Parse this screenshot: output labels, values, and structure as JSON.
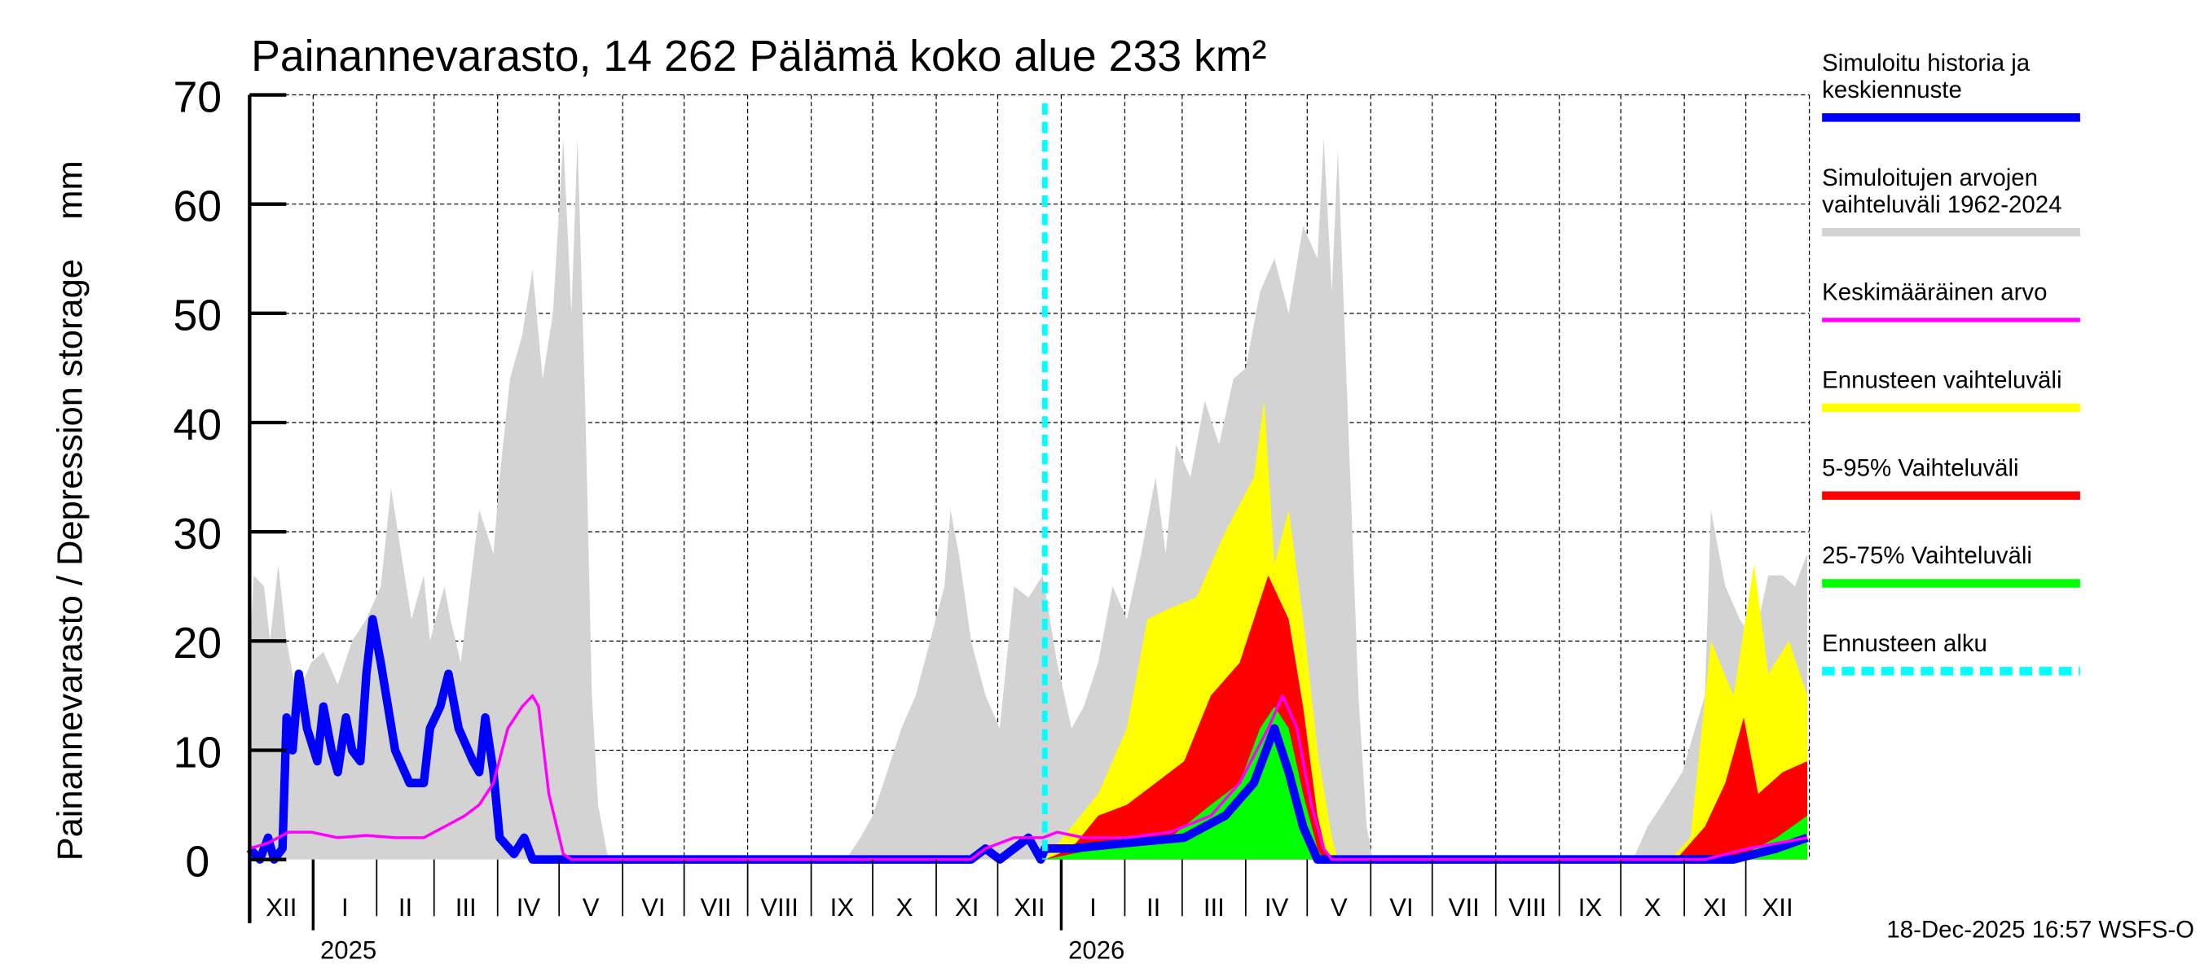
{
  "chart_data": {
    "type": "area",
    "title": "Painannevarasto, 14 262 Pälämä koko alue 233 km²",
    "ylabel": "Painannevarasto / Depression storage    mm",
    "xlabel": "",
    "x_unit": "days since 2024-12-01",
    "xlim": [
      0,
      761
    ],
    "ylim": [
      0,
      70
    ],
    "yticks": [
      0,
      10,
      20,
      30,
      40,
      50,
      60,
      70
    ],
    "grid": true,
    "legend_placement": "right",
    "months": [
      {
        "label": "XII",
        "start": 0
      },
      {
        "label": "I",
        "start": 31
      },
      {
        "label": "II",
        "start": 62
      },
      {
        "label": "III",
        "start": 90
      },
      {
        "label": "IV",
        "start": 121
      },
      {
        "label": "V",
        "start": 151
      },
      {
        "label": "VI",
        "start": 182
      },
      {
        "label": "VII",
        "start": 212
      },
      {
        "label": "VIII",
        "start": 243
      },
      {
        "label": "IX",
        "start": 274
      },
      {
        "label": "X",
        "start": 304
      },
      {
        "label": "XI",
        "start": 335
      },
      {
        "label": "XII",
        "start": 365
      },
      {
        "label": "I",
        "start": 396
      },
      {
        "label": "II",
        "start": 427
      },
      {
        "label": "III",
        "start": 455
      },
      {
        "label": "IV",
        "start": 486
      },
      {
        "label": "V",
        "start": 516
      },
      {
        "label": "VI",
        "start": 547
      },
      {
        "label": "VII",
        "start": 577
      },
      {
        "label": "VIII",
        "start": 608
      },
      {
        "label": "IX",
        "start": 639
      },
      {
        "label": "X",
        "start": 669
      },
      {
        "label": "XI",
        "start": 700
      },
      {
        "label": "XII",
        "start": 730
      }
    ],
    "month_end": 761,
    "years": [
      {
        "label": "2025",
        "start": 31
      },
      {
        "label": "2026",
        "start": 396
      }
    ],
    "forecast_start": 388,
    "footer": "18-Dec-2025 16:57 WSFS-O",
    "series": [
      {
        "name": "Simuloitujen arvojen vaihteluväli 1962-2024",
        "kind": "band",
        "color": "#d3d3d3",
        "points": [
          [
            0,
            19
          ],
          [
            2,
            26
          ],
          [
            7,
            25
          ],
          [
            10,
            20
          ],
          [
            14,
            27
          ],
          [
            18,
            20
          ],
          [
            23,
            15
          ],
          [
            30,
            18
          ],
          [
            36,
            19
          ],
          [
            43,
            16
          ],
          [
            50,
            20
          ],
          [
            57,
            22
          ],
          [
            64,
            25
          ],
          [
            69,
            34
          ],
          [
            74,
            28
          ],
          [
            79,
            22
          ],
          [
            85,
            26
          ],
          [
            88,
            20
          ],
          [
            95,
            25
          ],
          [
            98,
            22
          ],
          [
            103,
            18
          ],
          [
            112,
            32
          ],
          [
            119,
            28
          ],
          [
            122,
            35
          ],
          [
            127,
            44
          ],
          [
            133,
            48
          ],
          [
            138,
            54
          ],
          [
            143,
            44
          ],
          [
            148,
            50
          ],
          [
            153,
            66
          ],
          [
            157,
            50
          ],
          [
            160,
            66
          ],
          [
            164,
            40
          ],
          [
            167,
            15
          ],
          [
            170,
            5
          ],
          [
            175,
            0
          ],
          [
            291,
            0
          ],
          [
            298,
            2
          ],
          [
            304,
            4
          ],
          [
            311,
            8
          ],
          [
            318,
            12
          ],
          [
            325,
            15
          ],
          [
            332,
            20
          ],
          [
            339,
            25
          ],
          [
            342,
            32
          ],
          [
            346,
            28
          ],
          [
            352,
            20
          ],
          [
            359,
            15
          ],
          [
            366,
            12
          ],
          [
            373,
            25
          ],
          [
            380,
            24
          ],
          [
            387,
            26
          ],
          [
            394,
            18
          ],
          [
            401,
            12
          ],
          [
            407,
            14
          ],
          [
            414,
            18
          ],
          [
            421,
            25
          ],
          [
            428,
            22
          ],
          [
            435,
            28
          ],
          [
            442,
            35
          ],
          [
            447,
            28
          ],
          [
            452,
            38
          ],
          [
            459,
            35
          ],
          [
            466,
            42
          ],
          [
            473,
            38
          ],
          [
            480,
            44
          ],
          [
            486,
            45
          ],
          [
            493,
            52
          ],
          [
            500,
            55
          ],
          [
            507,
            50
          ],
          [
            514,
            58
          ],
          [
            521,
            55
          ],
          [
            524,
            66
          ],
          [
            528,
            52
          ],
          [
            531,
            65
          ],
          [
            535,
            45
          ],
          [
            538,
            30
          ],
          [
            541,
            15
          ],
          [
            545,
            3
          ],
          [
            548,
            0
          ],
          [
            675,
            0
          ],
          [
            682,
            3
          ],
          [
            689,
            5
          ],
          [
            699,
            8
          ],
          [
            710,
            15
          ],
          [
            713,
            32
          ],
          [
            720,
            25
          ],
          [
            727,
            22
          ],
          [
            734,
            20
          ],
          [
            741,
            26
          ],
          [
            748,
            26
          ],
          [
            754,
            25
          ],
          [
            760,
            28
          ]
        ]
      },
      {
        "name": "Ennusteen vaihteluväli",
        "kind": "band",
        "color": "#ffff00",
        "points": [
          [
            388,
            0
          ],
          [
            401,
            3
          ],
          [
            414,
            6
          ],
          [
            428,
            12
          ],
          [
            438,
            22
          ],
          [
            449,
            23
          ],
          [
            462,
            24
          ],
          [
            476,
            30
          ],
          [
            490,
            35
          ],
          [
            495,
            42
          ],
          [
            500,
            27
          ],
          [
            507,
            32
          ],
          [
            514,
            22
          ],
          [
            521,
            10
          ],
          [
            528,
            2
          ],
          [
            531,
            0
          ],
          [
            693,
            0
          ],
          [
            703,
            2
          ],
          [
            713,
            20
          ],
          [
            724,
            15
          ],
          [
            734,
            27
          ],
          [
            741,
            17
          ],
          [
            751,
            20
          ],
          [
            760,
            15
          ]
        ]
      },
      {
        "name": "5-95% Vaihteluväli",
        "kind": "band",
        "color": "#ff0000",
        "points": [
          [
            388,
            0
          ],
          [
            401,
            1
          ],
          [
            414,
            4
          ],
          [
            428,
            5
          ],
          [
            442,
            7
          ],
          [
            456,
            9
          ],
          [
            469,
            15
          ],
          [
            483,
            18
          ],
          [
            497,
            26
          ],
          [
            507,
            22
          ],
          [
            514,
            14
          ],
          [
            521,
            4
          ],
          [
            526,
            0
          ],
          [
            696,
            0
          ],
          [
            710,
            3
          ],
          [
            720,
            7
          ],
          [
            729,
            13
          ],
          [
            736,
            6
          ],
          [
            748,
            8
          ],
          [
            760,
            9
          ]
        ]
      },
      {
        "name": "25-75% Vaihteluväli",
        "kind": "band",
        "color": "#00ff00",
        "points": [
          [
            388,
            0
          ],
          [
            401,
            0.5
          ],
          [
            428,
            1.5
          ],
          [
            449,
            2
          ],
          [
            469,
            5
          ],
          [
            483,
            7
          ],
          [
            493,
            12
          ],
          [
            500,
            14
          ],
          [
            507,
            12
          ],
          [
            514,
            6
          ],
          [
            521,
            1
          ],
          [
            524,
            0
          ],
          [
            724,
            0
          ],
          [
            745,
            2
          ],
          [
            760,
            4
          ]
        ]
      },
      {
        "name": "Simuloitu historia ja keskiennuste",
        "kind": "line",
        "color": "#0000ff",
        "width": 6,
        "points": [
          [
            0,
            1
          ],
          [
            5,
            0
          ],
          [
            9,
            2
          ],
          [
            12,
            0
          ],
          [
            16,
            1
          ],
          [
            18,
            13
          ],
          [
            21,
            10
          ],
          [
            24,
            17
          ],
          [
            28,
            12
          ],
          [
            33,
            9
          ],
          [
            36,
            14
          ],
          [
            40,
            10
          ],
          [
            43,
            8
          ],
          [
            47,
            13
          ],
          [
            50,
            10
          ],
          [
            54,
            9
          ],
          [
            57,
            17
          ],
          [
            60,
            22
          ],
          [
            64,
            18
          ],
          [
            71,
            10
          ],
          [
            78,
            7
          ],
          [
            85,
            7
          ],
          [
            88,
            12
          ],
          [
            93,
            14
          ],
          [
            97,
            17
          ],
          [
            102,
            12
          ],
          [
            109,
            9
          ],
          [
            112,
            8
          ],
          [
            115,
            13
          ],
          [
            119,
            8
          ],
          [
            122,
            2
          ],
          [
            129,
            0.5
          ],
          [
            134,
            2
          ],
          [
            138,
            0
          ],
          [
            352,
            0
          ],
          [
            359,
            1
          ],
          [
            366,
            0
          ],
          [
            373,
            1
          ],
          [
            380,
            2
          ],
          [
            386,
            0
          ],
          [
            388,
            1
          ],
          [
            401,
            1
          ],
          [
            428,
            1.5
          ],
          [
            456,
            2
          ],
          [
            476,
            4
          ],
          [
            490,
            7
          ],
          [
            500,
            12
          ],
          [
            507,
            8
          ],
          [
            514,
            3
          ],
          [
            521,
            0
          ],
          [
            724,
            0
          ],
          [
            745,
            1
          ],
          [
            760,
            2
          ]
        ]
      },
      {
        "name": "Keskimääräinen arvo",
        "kind": "line",
        "color": "#ff00ff",
        "width": 2,
        "points": [
          [
            0,
            1
          ],
          [
            9,
            1.5
          ],
          [
            19,
            2.5
          ],
          [
            30,
            2.5
          ],
          [
            43,
            2
          ],
          [
            57,
            2.2
          ],
          [
            71,
            2
          ],
          [
            85,
            2
          ],
          [
            95,
            3
          ],
          [
            105,
            4
          ],
          [
            112,
            5
          ],
          [
            119,
            7
          ],
          [
            126,
            12
          ],
          [
            133,
            14
          ],
          [
            138,
            15
          ],
          [
            141,
            14
          ],
          [
            146,
            6
          ],
          [
            153,
            0.5
          ],
          [
            157,
            0
          ],
          [
            352,
            0
          ],
          [
            359,
            1
          ],
          [
            373,
            2
          ],
          [
            387,
            2
          ],
          [
            394,
            2.5
          ],
          [
            407,
            2
          ],
          [
            428,
            2
          ],
          [
            449,
            2.5
          ],
          [
            469,
            4
          ],
          [
            483,
            7
          ],
          [
            497,
            12
          ],
          [
            504,
            15
          ],
          [
            511,
            12
          ],
          [
            518,
            5
          ],
          [
            524,
            1
          ],
          [
            528,
            0
          ],
          [
            710,
            0
          ],
          [
            731,
            1
          ],
          [
            760,
            2
          ]
        ]
      }
    ],
    "legend": [
      {
        "label": "Simuloitu historia ja",
        "label2": "keskiennuste",
        "color": "#0000ff",
        "style": "thick"
      },
      {
        "label": "Simuloitujen arvojen",
        "label2": "vaihteluväli 1962-2024",
        "color": "#d3d3d3",
        "style": "thick"
      },
      {
        "label": "Keskimääräinen arvo",
        "color": "#ff00ff",
        "style": "thin"
      },
      {
        "label": "Ennusteen vaihteluväli",
        "color": "#ffff00",
        "style": "thick"
      },
      {
        "label": "5-95% Vaihteluväli",
        "color": "#ff0000",
        "style": "thick"
      },
      {
        "label": "25-75% Vaihteluväli",
        "color": "#00ff00",
        "style": "thick"
      },
      {
        "label": "Ennusteen alku",
        "color": "#00ffff",
        "style": "dashed"
      }
    ]
  }
}
